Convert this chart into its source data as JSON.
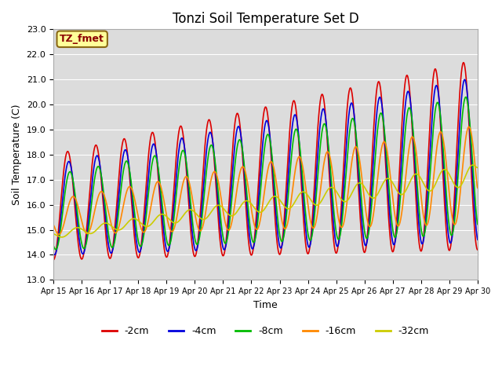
{
  "title": "Tonzi Soil Temperature Set D",
  "xlabel": "Time",
  "ylabel": "Soil Temperature (C)",
  "ylim": [
    13.0,
    23.0
  ],
  "yticks": [
    13.0,
    14.0,
    15.0,
    16.0,
    17.0,
    18.0,
    19.0,
    20.0,
    21.0,
    22.0,
    23.0
  ],
  "xtick_labels": [
    "Apr 15",
    "Apr 16",
    "Apr 17",
    "Apr 18",
    "Apr 19",
    "Apr 20",
    "Apr 21",
    "Apr 22",
    "Apr 23",
    "Apr 24",
    "Apr 25",
    "Apr 26",
    "Apr 27",
    "Apr 28",
    "Apr 29",
    "Apr 30"
  ],
  "annotation_text": "TZ_fmet",
  "annotation_bg": "#FFFF99",
  "annotation_border": "#8B6914",
  "series": [
    {
      "label": "-2cm",
      "color": "#DD0000",
      "lw": 1.2
    },
    {
      "label": "-4cm",
      "color": "#0000DD",
      "lw": 1.2
    },
    {
      "label": "-8cm",
      "color": "#00BB00",
      "lw": 1.2
    },
    {
      "label": "-16cm",
      "color": "#FF8800",
      "lw": 1.2
    },
    {
      "label": "-32cm",
      "color": "#CCCC00",
      "lw": 1.2
    }
  ],
  "bg_color": "#DCDCDC",
  "fig_bg": "#FFFFFF",
  "grid_color": "#FFFFFF",
  "title_fontsize": 12,
  "label_fontsize": 9,
  "tick_fontsize": 8
}
